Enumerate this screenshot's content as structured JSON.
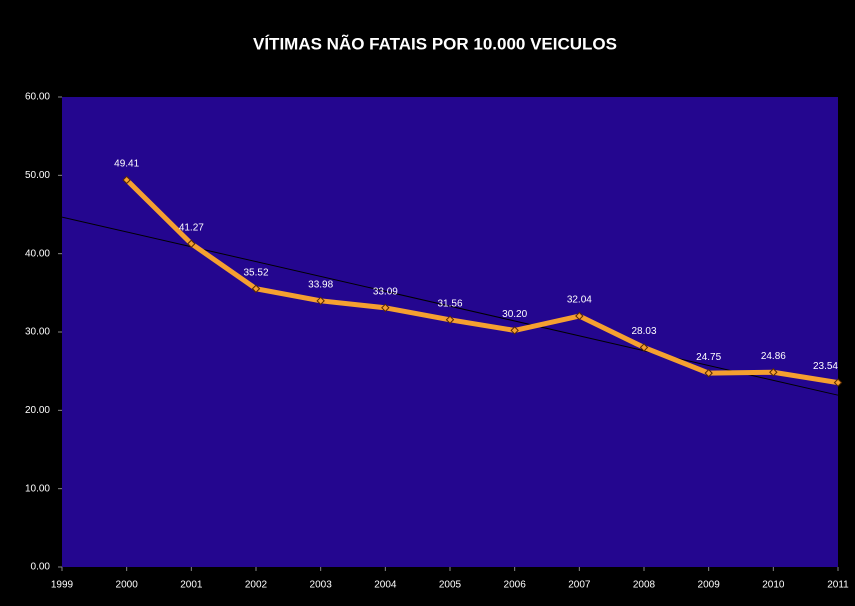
{
  "chart_data": {
    "type": "line",
    "title": "VÍTIMAS NÃO FATAIS POR 10.000 VEICULOS",
    "x": [
      2000,
      2001,
      2002,
      2003,
      2004,
      2005,
      2006,
      2007,
      2008,
      2009,
      2010,
      2011
    ],
    "values": [
      49.41,
      41.27,
      35.52,
      33.98,
      33.09,
      31.56,
      30.2,
      32.04,
      28.03,
      24.75,
      24.86,
      23.54
    ],
    "value_labels": [
      "49.41",
      "41.27",
      "35.52",
      "33.98",
      "33.09",
      "31.56",
      "30.20",
      "32.04",
      "28.03",
      "24.75",
      "24.86",
      "23.54"
    ],
    "color": "#f5a030",
    "xlim": [
      1999,
      2011
    ],
    "xticks": [
      1999,
      2000,
      2001,
      2002,
      2003,
      2004,
      2005,
      2006,
      2007,
      2008,
      2009,
      2010,
      2011
    ],
    "ylim": [
      0,
      60
    ],
    "yticks": [
      {
        "value": 0,
        "label": "0.00"
      },
      {
        "value": 10,
        "label": "10.00"
      },
      {
        "value": 20,
        "label": "20.00"
      },
      {
        "value": 30,
        "label": "30.00"
      },
      {
        "value": 40,
        "label": "40.00"
      },
      {
        "value": 50,
        "label": "50.00"
      },
      {
        "value": 60,
        "label": "60.00"
      }
    ],
    "trendline": "linear"
  }
}
